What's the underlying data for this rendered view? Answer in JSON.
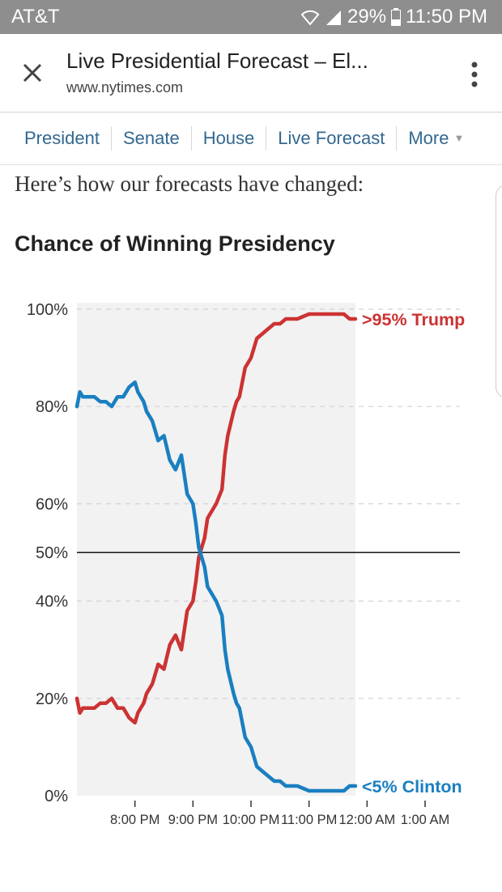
{
  "status_bar": {
    "carrier": "AT&T",
    "battery": "29%",
    "time": "11:50 PM"
  },
  "browser": {
    "title": "Live Presidential Forecast – El...",
    "domain": "www.nytimes.com"
  },
  "nav": {
    "items": [
      "President",
      "Senate",
      "House",
      "Live Forecast",
      "More"
    ]
  },
  "intro_text": "Here’s how our forecasts have changed:",
  "chart_data": {
    "type": "line",
    "title": "Chance of Winning Presidency",
    "xlabel": "",
    "ylabel": "",
    "ylim": [
      0,
      100
    ],
    "y_ticks": [
      {
        "value": 100,
        "label": "100%"
      },
      {
        "value": 80,
        "label": "80%"
      },
      {
        "value": 60,
        "label": "60%"
      },
      {
        "value": 50,
        "label": "50%"
      },
      {
        "value": 40,
        "label": "40%"
      },
      {
        "value": 20,
        "label": "20%"
      },
      {
        "value": 0,
        "label": "0%"
      }
    ],
    "x_ticks": [
      {
        "value": 20,
        "label": "8:00 PM"
      },
      {
        "value": 21,
        "label": "9:00 PM"
      },
      {
        "value": 22,
        "label": "10:00 PM"
      },
      {
        "value": 23,
        "label": "11:00 PM"
      },
      {
        "value": 24,
        "label": "12:00 AM"
      },
      {
        "value": 25,
        "label": "1:00 AM"
      }
    ],
    "x_unit": "hours since midnight (election night)",
    "xlim": [
      19.0,
      25.6
    ],
    "shaded_until": 23.8,
    "reference_line": 50,
    "series": [
      {
        "name": "Trump",
        "end_label": ">95% Trump",
        "color": "#cc3333",
        "x": [
          19.0,
          19.05,
          19.1,
          19.2,
          19.3,
          19.4,
          19.5,
          19.6,
          19.7,
          19.8,
          19.9,
          20.0,
          20.05,
          20.1,
          20.15,
          20.2,
          20.3,
          20.4,
          20.5,
          20.6,
          20.7,
          20.8,
          20.9,
          21.0,
          21.05,
          21.1,
          21.2,
          21.25,
          21.3,
          21.4,
          21.5,
          21.55,
          21.6,
          21.7,
          21.75,
          21.8,
          21.9,
          22.0,
          22.05,
          22.1,
          22.2,
          22.3,
          22.4,
          22.5,
          22.6,
          22.7,
          22.8,
          22.9,
          23.0,
          23.1,
          23.2,
          23.3,
          23.4,
          23.5,
          23.6,
          23.7,
          23.8
        ],
        "values": [
          20,
          17,
          18,
          18,
          18,
          19,
          19,
          20,
          18,
          18,
          16,
          15,
          17,
          18,
          19,
          21,
          23,
          27,
          26,
          31,
          33,
          30,
          38,
          40,
          44,
          49,
          53,
          57,
          58,
          60,
          63,
          70,
          74,
          79,
          81,
          82,
          88,
          90,
          92,
          94,
          95,
          96,
          97,
          97,
          98,
          98,
          98,
          98.5,
          99,
          99,
          99,
          99,
          99,
          99,
          99,
          98,
          98
        ]
      },
      {
        "name": "Clinton",
        "end_label": "<5% Clinton",
        "color": "#1a7fc1",
        "x": [
          19.0,
          19.05,
          19.1,
          19.2,
          19.3,
          19.4,
          19.5,
          19.6,
          19.7,
          19.8,
          19.9,
          20.0,
          20.05,
          20.1,
          20.15,
          20.2,
          20.3,
          20.4,
          20.5,
          20.6,
          20.7,
          20.8,
          20.9,
          21.0,
          21.05,
          21.1,
          21.2,
          21.25,
          21.3,
          21.4,
          21.5,
          21.55,
          21.6,
          21.7,
          21.75,
          21.8,
          21.9,
          22.0,
          22.05,
          22.1,
          22.2,
          22.3,
          22.4,
          22.5,
          22.6,
          22.7,
          22.8,
          22.9,
          23.0,
          23.1,
          23.2,
          23.3,
          23.4,
          23.5,
          23.6,
          23.7,
          23.8
        ],
        "values": [
          80,
          83,
          82,
          82,
          82,
          81,
          81,
          80,
          82,
          82,
          84,
          85,
          83,
          82,
          81,
          79,
          77,
          73,
          74,
          69,
          67,
          70,
          62,
          60,
          56,
          51,
          47,
          43,
          42,
          40,
          37,
          30,
          26,
          21,
          19,
          18,
          12,
          10,
          8,
          6,
          5,
          4,
          3,
          3,
          2,
          2,
          2,
          1.5,
          1,
          1,
          1,
          1,
          1,
          1,
          1,
          2,
          2
        ]
      }
    ]
  }
}
